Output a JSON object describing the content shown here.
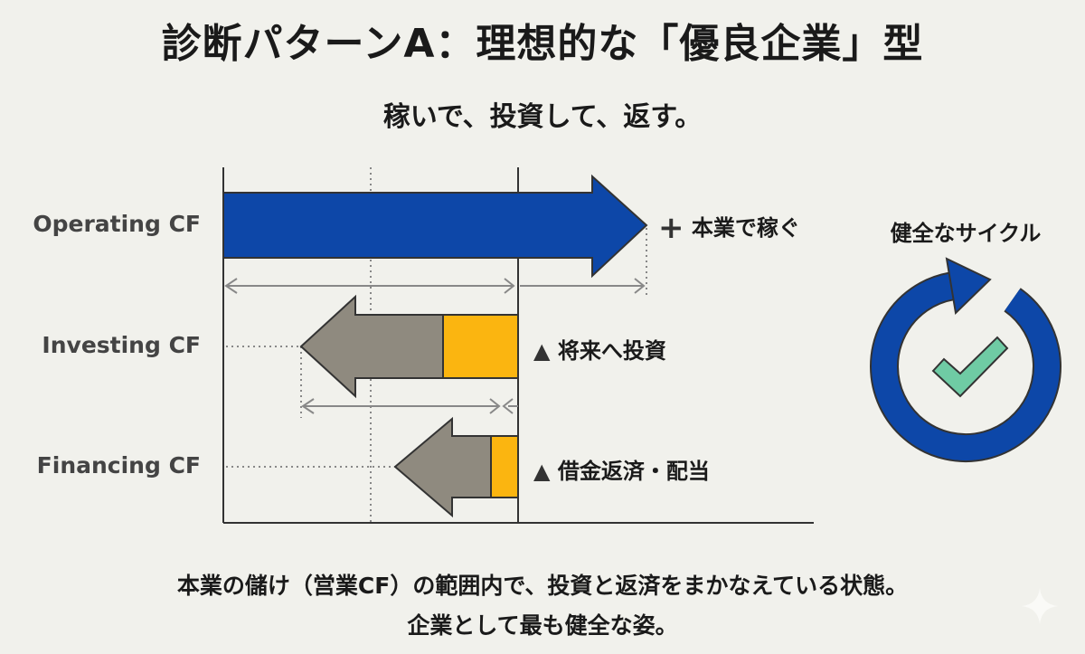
{
  "title": "診断パターンA：理想的な「優良企業」型",
  "subtitle": "稼いで、投資して、返す。",
  "rows": [
    {
      "label": "Operating CF",
      "direction": "plus",
      "sign": "+",
      "note": "本業で稼ぐ"
    },
    {
      "label": "Investing CF",
      "direction": "minus",
      "sign": "▲",
      "note": "将来へ投資"
    },
    {
      "label": "Financing CF",
      "direction": "minus",
      "sign": "▲",
      "note": "借金返済・配当"
    }
  ],
  "cycle": {
    "title": "健全なサイクル",
    "icon": "cycle-check-icon"
  },
  "footer": {
    "line1": "本業の儲け（営業CF）の範囲内で、投資と返済をまかなえている状態。",
    "line2": "企業として最も健全な姿。"
  },
  "colors": {
    "operating": "#0d47a8",
    "outflow": "#8f8a7f",
    "highlight": "#fbb510",
    "check": "#6fcba4",
    "background": "#f1f1ec"
  }
}
